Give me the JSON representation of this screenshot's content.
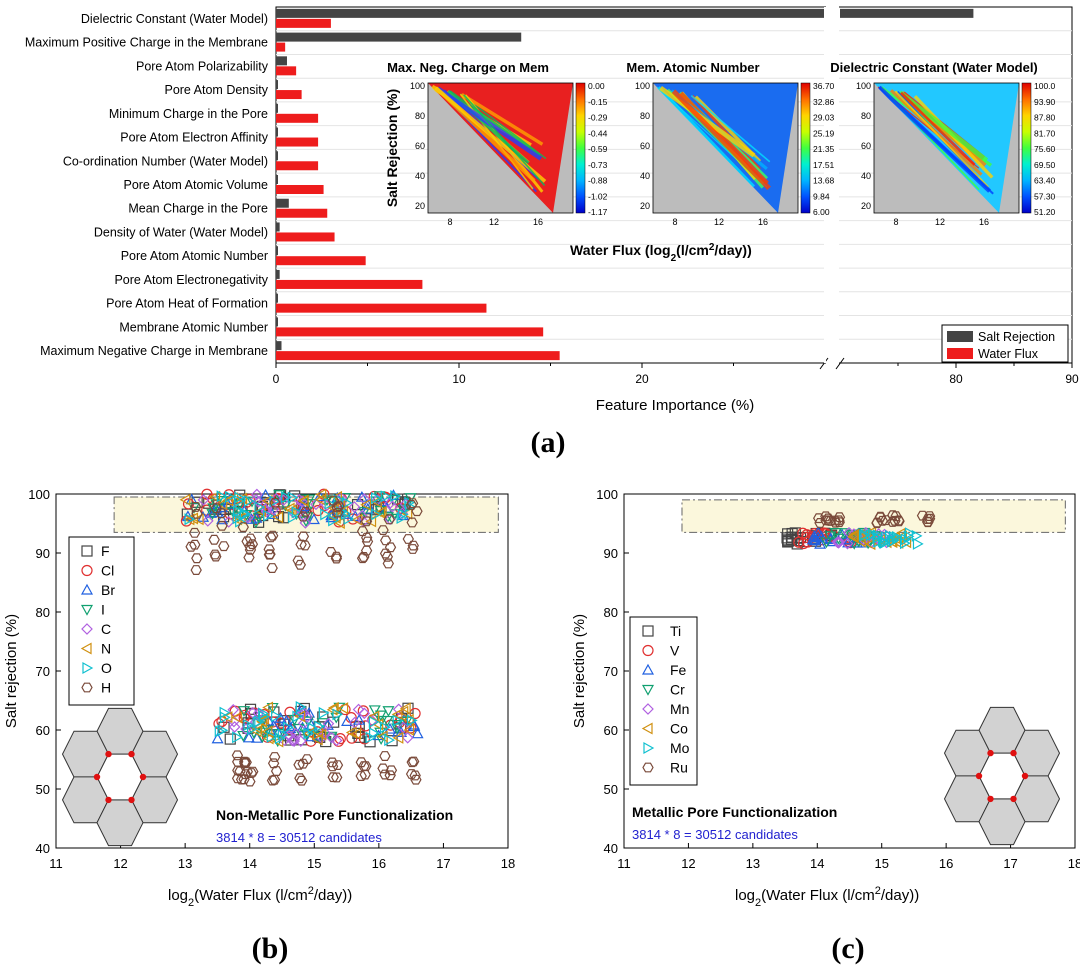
{
  "panel_labels": {
    "a": "(a)",
    "b": "(b)",
    "c": "(c)"
  },
  "colors": {
    "salt": "#444444",
    "flux": "#ee1c1c",
    "band_fill": "#fbf7dc",
    "blue_text": "#1f1fcf"
  },
  "chart_data": [
    {
      "id": "a",
      "type": "bar",
      "orientation": "horizontal",
      "xlabel": "Feature Importance (%)",
      "xlim_segments": [
        [
          0,
          30
        ],
        [
          70,
          90
        ]
      ],
      "xticks": [
        0,
        10,
        20,
        80,
        90
      ],
      "categories": [
        "Dielectric Constant (Water Model)",
        "Maximum Positive Charge in the Membrane",
        "Pore Atom Polarizability",
        "Pore Atom Density",
        "Minimum Charge in the Pore",
        "Pore Atom Electron Affinity",
        "Co-ordination Number (Water Model)",
        "Pore Atom Atomic Volume",
        "Mean Charge in the Pore",
        "Density of Water (Water Model)",
        "Pore Atom Atomic Number",
        "Pore Atom Electronegativity",
        "Pore Atom Heat of Formation",
        "Membrane Atomic Number",
        "Maximum Negative Charge in Membrane"
      ],
      "series": [
        {
          "name": "Salt Rejection",
          "color": "#444444",
          "values": [
            81.5,
            13.4,
            0.6,
            0.1,
            0.1,
            0.1,
            0.1,
            0.1,
            0.7,
            0.2,
            0.1,
            0.2,
            0.1,
            0.1,
            0.3
          ]
        },
        {
          "name": "Water Flux",
          "color": "#ee1c1c",
          "values": [
            3.0,
            0.5,
            1.1,
            1.4,
            2.3,
            2.3,
            2.3,
            2.6,
            2.8,
            3.2,
            4.9,
            8.0,
            11.5,
            14.6,
            15.5
          ]
        }
      ],
      "legend_position": "bottom-right",
      "insets": {
        "shared_xlabel": "Water Flux (log",
        "shared_xlabel_sub": "2",
        "shared_xlabel_mid": "(l/cm",
        "shared_xlabel_sup": "2",
        "shared_xlabel_end": "/day))",
        "shared_ylabel": "Salt Rejection (%)",
        "xticks": [
          "8",
          "12",
          "16"
        ],
        "yticks": [
          "100",
          "80",
          "60",
          "40",
          "20"
        ],
        "maps": [
          {
            "title": "Max. Neg. Charge on Mem",
            "colorbar": [
              "0.00",
              "-0.15",
              "-0.29",
              "-0.44",
              "-0.59",
              "-0.73",
              "-0.88",
              "-1.02",
              "-1.17"
            ]
          },
          {
            "title": "Mem. Atomic Number",
            "colorbar": [
              "36.70",
              "32.86",
              "29.03",
              "25.19",
              "21.35",
              "17.51",
              "13.68",
              "9.84",
              "6.00"
            ]
          },
          {
            "title": "Dielectric Constant (Water Model)",
            "colorbar": [
              "100.0",
              "93.90",
              "87.80",
              "81.70",
              "75.60",
              "69.50",
              "63.40",
              "57.30",
              "51.20"
            ]
          }
        ]
      }
    },
    {
      "id": "b",
      "type": "scatter",
      "xlabel": "log",
      "xlabel_sub": "2",
      "xlabel_mid": "(Water Flux (l/cm",
      "xlabel_sup": "2",
      "xlabel_end": "/day))",
      "ylabel": "Salt rejection (%)",
      "xlim": [
        11,
        18
      ],
      "ylim": [
        40,
        100
      ],
      "xticks": [
        11,
        12,
        13,
        14,
        15,
        16,
        17,
        18
      ],
      "yticks": [
        40,
        50,
        60,
        70,
        80,
        90,
        100
      ],
      "legend_position": "top-left",
      "series_names": [
        "F",
        "Cl",
        "Br",
        "I",
        "C",
        "N",
        "O",
        "H"
      ],
      "annotation": "Non-Metallic Pore Functionalization",
      "candidates": "3814 * 8 = 30512 candidates",
      "highlight_band": [
        93.5,
        99.5
      ],
      "clusters": {
        "upper": {
          "x": [
            13.0,
            16.5
          ],
          "y": [
            95,
            100
          ]
        },
        "lower": {
          "x": [
            13.5,
            16.6
          ],
          "y": [
            58,
            64
          ]
        },
        "H_upper": {
          "x": [
            13.0,
            16.6
          ],
          "y": [
            87,
            99
          ]
        },
        "H_lower": {
          "x": [
            13.8,
            16.6
          ],
          "y": [
            51,
            56
          ]
        }
      }
    },
    {
      "id": "c",
      "type": "scatter",
      "xlabel": "log",
      "xlabel_sub": "2",
      "xlabel_mid": "(Water Flux (l/cm",
      "xlabel_sup": "2",
      "xlabel_end": "/day))",
      "ylabel": "Salt rejection (%)",
      "xlim": [
        11,
        18
      ],
      "ylim": [
        40,
        100
      ],
      "xticks": [
        11,
        12,
        13,
        14,
        15,
        16,
        17,
        18
      ],
      "yticks": [
        40,
        50,
        60,
        70,
        80,
        90,
        100
      ],
      "legend_position": "top-left",
      "series_names": [
        "Ti",
        "V",
        "Fe",
        "Cr",
        "Mn",
        "Co",
        "Mo",
        "Ru"
      ],
      "annotation": "Metallic Pore Functionalization",
      "candidates": "3814 * 8 = 30512 candidates",
      "highlight_band": [
        93.5,
        99
      ],
      "clusters": {
        "main": {
          "x": [
            13.5,
            15.7
          ],
          "y": [
            91.5,
            93.5
          ]
        },
        "Ru": {
          "x": [
            14.0,
            15.7
          ],
          "y": [
            95,
            96.5
          ]
        }
      }
    }
  ]
}
